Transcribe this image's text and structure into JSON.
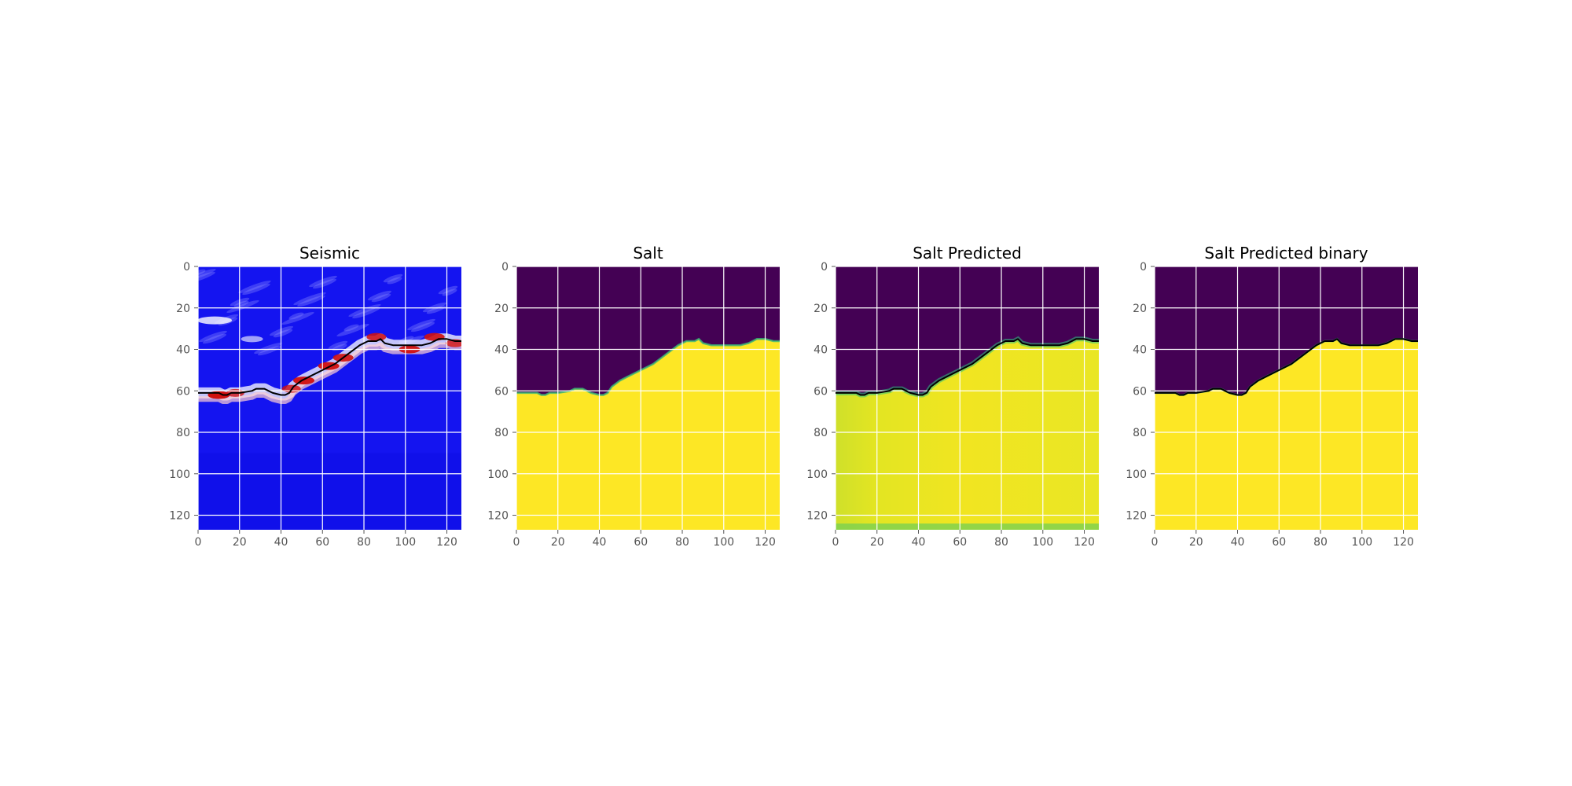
{
  "figure": {
    "background": "#ffffff",
    "grid_color": "#ffffff",
    "tick_color": "#555555"
  },
  "chart_data": [
    {
      "type": "heatmap",
      "title": "Seismic",
      "colormap": "seismic",
      "xlim": [
        0,
        127
      ],
      "ylim": [
        127,
        0
      ],
      "xticks": [
        "0",
        "20",
        "40",
        "60",
        "80",
        "100",
        "120"
      ],
      "yticks": [
        "0",
        "20",
        "40",
        "60",
        "80",
        "100",
        "120"
      ],
      "grid": true,
      "contour_overlay": true
    },
    {
      "type": "heatmap",
      "title": "Salt",
      "colormap": "viridis",
      "xlim": [
        0,
        127
      ],
      "ylim": [
        127,
        0
      ],
      "xticks": [
        "0",
        "20",
        "40",
        "60",
        "80",
        "100",
        "120"
      ],
      "yticks": [
        "0",
        "20",
        "40",
        "60",
        "80",
        "100",
        "120"
      ],
      "grid": true,
      "contour_overlay": false
    },
    {
      "type": "heatmap",
      "title": "Salt Predicted",
      "colormap": "viridis",
      "xlim": [
        0,
        127
      ],
      "ylim": [
        127,
        0
      ],
      "xticks": [
        "0",
        "20",
        "40",
        "60",
        "80",
        "100",
        "120"
      ],
      "yticks": [
        "0",
        "20",
        "40",
        "60",
        "80",
        "100",
        "120"
      ],
      "grid": true,
      "contour_overlay": true
    },
    {
      "type": "heatmap",
      "title": "Salt Predicted binary",
      "colormap": "viridis",
      "xlim": [
        0,
        127
      ],
      "ylim": [
        127,
        0
      ],
      "xticks": [
        "0",
        "20",
        "40",
        "60",
        "80",
        "100",
        "120"
      ],
      "yticks": [
        "0",
        "20",
        "40",
        "60",
        "80",
        "100",
        "120"
      ],
      "grid": true,
      "contour_overlay": true
    }
  ],
  "salt_boundary": {
    "x": [
      0,
      10,
      12,
      14,
      16,
      20,
      26,
      28,
      32,
      34,
      36,
      40,
      42,
      44,
      46,
      50,
      54,
      60,
      66,
      70,
      74,
      78,
      82,
      86,
      88,
      90,
      94,
      100,
      104,
      108,
      112,
      116,
      120,
      124,
      127
    ],
    "y": [
      61,
      61,
      62,
      62,
      61,
      61,
      60,
      59,
      59,
      60,
      61,
      62,
      62,
      61,
      58,
      55,
      53,
      50,
      47,
      44,
      41,
      38,
      36,
      36,
      35,
      37,
      38,
      38,
      38,
      38,
      37,
      35,
      35,
      36,
      36
    ]
  },
  "seismic_reflectors": [
    {
      "x": 10,
      "y": 62,
      "strength": 1.0
    },
    {
      "x": 18,
      "y": 61,
      "strength": 0.5
    },
    {
      "x": 45,
      "y": 59,
      "strength": 0.6
    },
    {
      "x": 51,
      "y": 55,
      "strength": 0.9
    },
    {
      "x": 63,
      "y": 48,
      "strength": 0.9
    },
    {
      "x": 70,
      "y": 44,
      "strength": 0.8
    },
    {
      "x": 86,
      "y": 34,
      "strength": 0.7
    },
    {
      "x": 102,
      "y": 40,
      "strength": 0.9
    },
    {
      "x": 114,
      "y": 34,
      "strength": 0.8
    },
    {
      "x": 124,
      "y": 37,
      "strength": 0.6
    }
  ]
}
